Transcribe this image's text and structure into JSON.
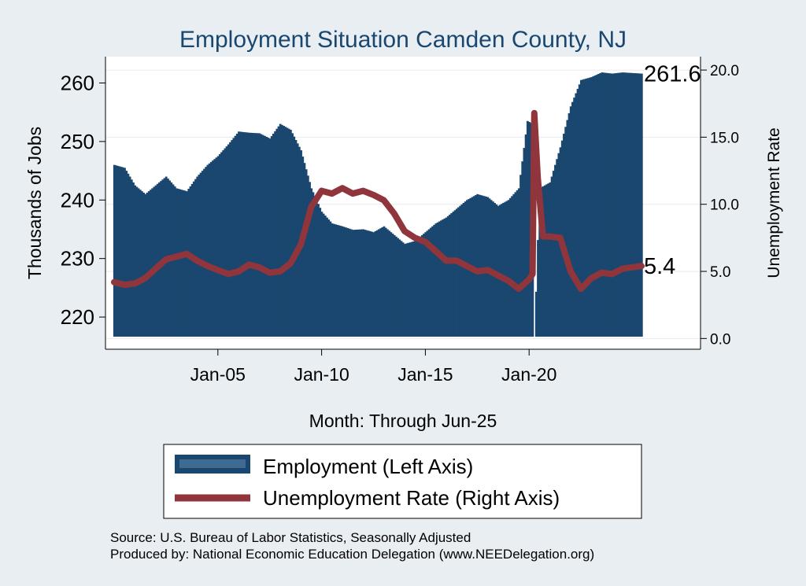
{
  "chart_data": {
    "type": "bar+line",
    "title": "Employment Situation Camden  County, NJ",
    "xlabel": "Month: Through Jun-25",
    "ylabel_left": "Thousands of Jobs",
    "ylabel_right": "Unemployment Rate",
    "x_ticks": [
      "Jan-05",
      "Jan-10",
      "Jan-15",
      "Jan-20"
    ],
    "y_left_ticks": [
      "220",
      "230",
      "240",
      "250",
      "260"
    ],
    "y_left_range": [
      214.5,
      264.5
    ],
    "y_right_ticks": [
      "0.0",
      "5.0",
      "10.0",
      "15.0",
      "20.0"
    ],
    "y_right_range": [
      -0.8,
      21.0
    ],
    "grid": true,
    "legend_position": "bottom",
    "x_range": [
      "Jan-00",
      "Jun-25"
    ],
    "series": [
      {
        "name": "Employment (Left Axis)",
        "kind": "bar",
        "color": "#1a476f",
        "points": [
          [
            "2000-01",
            246.0
          ],
          [
            "2000-07",
            245.5
          ],
          [
            "2001-01",
            242.5
          ],
          [
            "2001-07",
            241.0
          ],
          [
            "2002-01",
            242.5
          ],
          [
            "2002-07",
            244.0
          ],
          [
            "2003-01",
            242.0
          ],
          [
            "2003-07",
            241.5
          ],
          [
            "2004-01",
            244.0
          ],
          [
            "2004-07",
            246.0
          ],
          [
            "2005-01",
            247.5
          ],
          [
            "2005-07",
            249.5
          ],
          [
            "2006-01",
            251.7
          ],
          [
            "2006-07",
            251.5
          ],
          [
            "2007-01",
            251.4
          ],
          [
            "2007-07",
            250.5
          ],
          [
            "2008-01",
            253.0
          ],
          [
            "2008-07",
            252.0
          ],
          [
            "2009-01",
            248.5
          ],
          [
            "2009-07",
            242.0
          ],
          [
            "2010-01",
            238.0
          ],
          [
            "2010-07",
            236.0
          ],
          [
            "2011-01",
            235.5
          ],
          [
            "2011-07",
            234.9
          ],
          [
            "2012-01",
            235.0
          ],
          [
            "2012-07",
            234.5
          ],
          [
            "2013-01",
            235.5
          ],
          [
            "2013-07",
            234.0
          ],
          [
            "2014-01",
            232.5
          ],
          [
            "2014-07",
            233.0
          ],
          [
            "2015-01",
            234.5
          ],
          [
            "2015-07",
            236.0
          ],
          [
            "2016-01",
            237.0
          ],
          [
            "2016-07",
            238.5
          ],
          [
            "2017-01",
            240.0
          ],
          [
            "2017-07",
            241.0
          ],
          [
            "2018-01",
            240.5
          ],
          [
            "2018-07",
            239.0
          ],
          [
            "2019-01",
            240.0
          ],
          [
            "2019-07",
            242.0
          ],
          [
            "2019-12",
            253.5
          ],
          [
            "2020-03",
            253.0
          ],
          [
            "2020-04",
            215.5
          ],
          [
            "2020-07",
            242.0
          ],
          [
            "2021-01",
            243.0
          ],
          [
            "2021-07",
            249.0
          ],
          [
            "2022-01",
            256.0
          ],
          [
            "2022-07",
            260.5
          ],
          [
            "2023-01",
            261.0
          ],
          [
            "2023-07",
            261.8
          ],
          [
            "2024-01",
            261.6
          ],
          [
            "2024-07",
            261.8
          ],
          [
            "2025-06",
            261.6
          ]
        ],
        "last_label": "261.6"
      },
      {
        "name": "Unemployment Rate (Right Axis)",
        "kind": "line",
        "color": "#90353b",
        "points": [
          [
            "2000-01",
            4.2
          ],
          [
            "2000-07",
            4.0
          ],
          [
            "2001-01",
            4.1
          ],
          [
            "2001-07",
            4.5
          ],
          [
            "2002-01",
            5.2
          ],
          [
            "2002-07",
            5.9
          ],
          [
            "2003-01",
            6.1
          ],
          [
            "2003-07",
            6.3
          ],
          [
            "2004-01",
            5.8
          ],
          [
            "2004-07",
            5.4
          ],
          [
            "2005-01",
            5.1
          ],
          [
            "2005-07",
            4.8
          ],
          [
            "2006-01",
            5.0
          ],
          [
            "2006-07",
            5.5
          ],
          [
            "2007-01",
            5.3
          ],
          [
            "2007-07",
            4.9
          ],
          [
            "2008-01",
            5.0
          ],
          [
            "2008-07",
            5.6
          ],
          [
            "2009-01",
            7.0
          ],
          [
            "2009-07",
            9.8
          ],
          [
            "2010-01",
            11.0
          ],
          [
            "2010-07",
            10.8
          ],
          [
            "2011-01",
            11.2
          ],
          [
            "2011-07",
            10.8
          ],
          [
            "2012-01",
            11.0
          ],
          [
            "2012-07",
            10.7
          ],
          [
            "2013-01",
            10.3
          ],
          [
            "2013-07",
            9.3
          ],
          [
            "2014-01",
            8.0
          ],
          [
            "2014-07",
            7.5
          ],
          [
            "2015-01",
            7.2
          ],
          [
            "2015-07",
            6.5
          ],
          [
            "2016-01",
            5.8
          ],
          [
            "2016-07",
            5.8
          ],
          [
            "2017-01",
            5.4
          ],
          [
            "2017-07",
            5.0
          ],
          [
            "2018-01",
            5.1
          ],
          [
            "2018-07",
            4.7
          ],
          [
            "2019-01",
            4.3
          ],
          [
            "2019-07",
            3.7
          ],
          [
            "2020-01",
            4.4
          ],
          [
            "2020-03",
            4.8
          ],
          [
            "2020-04",
            16.8
          ],
          [
            "2020-06",
            12.0
          ],
          [
            "2020-09",
            7.6
          ],
          [
            "2021-01",
            7.6
          ],
          [
            "2021-07",
            7.5
          ],
          [
            "2022-01",
            5.0
          ],
          [
            "2022-07",
            3.7
          ],
          [
            "2023-01",
            4.5
          ],
          [
            "2023-07",
            4.9
          ],
          [
            "2024-01",
            4.8
          ],
          [
            "2024-07",
            5.2
          ],
          [
            "2025-06",
            5.4
          ]
        ],
        "last_label": "5.4"
      }
    ]
  },
  "source": "Source: U.S. Bureau of Labor Statistics, Seasonally Adjusted",
  "produced_by": "Produced by: National Economic Education Delegation (www.NEEDelegation.org)"
}
